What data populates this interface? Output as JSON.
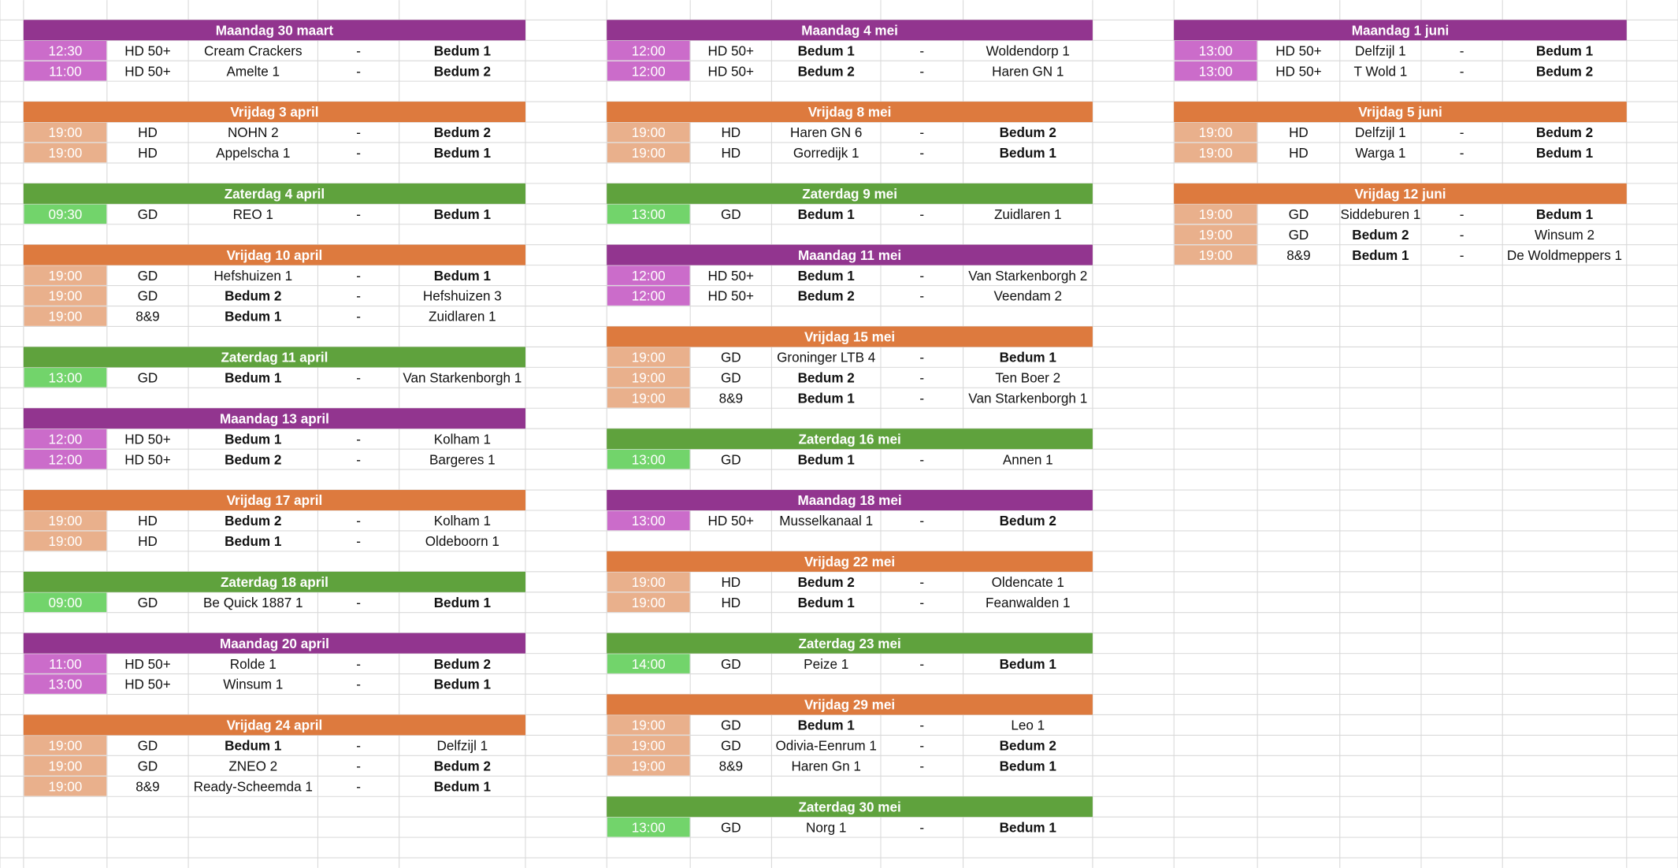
{
  "columns": [
    {
      "days": [
        {
          "title": "Maandag 30 maart",
          "header_color": "#92358f",
          "time_color": "#cb6cca",
          "matches": [
            {
              "time": "12:30",
              "category": "HD 50+",
              "home": "Cream Crackers",
              "sep": "-",
              "away": "Bedum 1",
              "bold": "away"
            },
            {
              "time": "11:00",
              "category": "HD 50+",
              "home": "Amelte 1",
              "sep": "-",
              "away": "Bedum 2",
              "bold": "away"
            }
          ]
        },
        {
          "title": "Vrijdag 3 april",
          "header_color": "#dd7a3e",
          "time_color": "#e9b08c",
          "matches": [
            {
              "time": "19:00",
              "category": "HD",
              "home": "NOHN 2",
              "sep": "-",
              "away": "Bedum 2",
              "bold": "away"
            },
            {
              "time": "19:00",
              "category": "HD",
              "home": "Appelscha 1",
              "sep": "-",
              "away": "Bedum 1",
              "bold": "away"
            }
          ]
        },
        {
          "title": "Zaterdag 4 april",
          "header_color": "#5fa23d",
          "time_color": "#72d46b",
          "matches": [
            {
              "time": "09:30",
              "category": "GD",
              "home": "REO 1",
              "sep": "-",
              "away": "Bedum 1",
              "bold": "away"
            }
          ]
        },
        {
          "title": "Vrijdag 10 april",
          "header_color": "#dd7a3e",
          "time_color": "#e9b08c",
          "matches": [
            {
              "time": "19:00",
              "category": "GD",
              "home": "Hefshuizen 1",
              "sep": "-",
              "away": "Bedum 1",
              "bold": "away"
            },
            {
              "time": "19:00",
              "category": "GD",
              "home": "Bedum 2",
              "sep": "-",
              "away": "Hefshuizen 3",
              "bold": "home"
            },
            {
              "time": "19:00",
              "category": "8&9",
              "home": "Bedum 1",
              "sep": "-",
              "away": "Zuidlaren 1",
              "bold": "home"
            }
          ]
        },
        {
          "title": "Zaterdag 11 april",
          "header_color": "#5fa23d",
          "time_color": "#72d46b",
          "matches": [
            {
              "time": "13:00",
              "category": "GD",
              "home": "Bedum 1",
              "sep": "-",
              "away": "Van Starkenborgh 1",
              "bold": "home"
            }
          ]
        },
        {
          "title": "Maandag 13 april",
          "header_color": "#92358f",
          "time_color": "#cb6cca",
          "matches": [
            {
              "time": "12:00",
              "category": "HD 50+",
              "home": "Bedum 1",
              "sep": "-",
              "away": "Kolham 1",
              "bold": "home"
            },
            {
              "time": "12:00",
              "category": "HD 50+",
              "home": "Bedum 2",
              "sep": "-",
              "away": "Bargeres 1",
              "bold": "home"
            }
          ]
        },
        {
          "title": "Vrijdag 17 april",
          "header_color": "#dd7a3e",
          "time_color": "#e9b08c",
          "matches": [
            {
              "time": "19:00",
              "category": "HD",
              "home": "Bedum 2",
              "sep": "-",
              "away": "Kolham 1",
              "bold": "home"
            },
            {
              "time": "19:00",
              "category": "HD",
              "home": "Bedum 1",
              "sep": "-",
              "away": "Oldeboorn 1",
              "bold": "home"
            }
          ]
        },
        {
          "title": "Zaterdag 18 april",
          "header_color": "#5fa23d",
          "time_color": "#72d46b",
          "matches": [
            {
              "time": "09:00",
              "category": "GD",
              "home": "Be Quick 1887 1",
              "sep": "-",
              "away": "Bedum 1",
              "bold": "away"
            }
          ]
        },
        {
          "title": "Maandag 20 april",
          "header_color": "#92358f",
          "time_color": "#cb6cca",
          "matches": [
            {
              "time": "11:00",
              "category": "HD 50+",
              "home": "Rolde 1",
              "sep": "-",
              "away": "Bedum 2",
              "bold": "away"
            },
            {
              "time": "13:00",
              "category": "HD 50+",
              "home": "Winsum 1",
              "sep": "-",
              "away": "Bedum 1",
              "bold": "away"
            }
          ]
        },
        {
          "title": "Vrijdag 24 april",
          "header_color": "#dd7a3e",
          "time_color": "#e9b08c",
          "matches": [
            {
              "time": "19:00",
              "category": "GD",
              "home": "Bedum 1",
              "sep": "-",
              "away": "Delfzijl 1",
              "bold": "home"
            },
            {
              "time": "19:00",
              "category": "GD",
              "home": "ZNEO 2",
              "sep": "-",
              "away": "Bedum 2",
              "bold": "away"
            },
            {
              "time": "19:00",
              "category": "8&9",
              "home": "Ready-Scheemda 1",
              "sep": "-",
              "away": "Bedum 1",
              "bold": "away"
            }
          ]
        }
      ]
    },
    {
      "days": [
        {
          "title": "Maandag 4 mei",
          "header_color": "#92358f",
          "time_color": "#cb6cca",
          "matches": [
            {
              "time": "12:00",
              "category": "HD 50+",
              "home": "Bedum 1",
              "sep": "-",
              "away": "Woldendorp 1",
              "bold": "home"
            },
            {
              "time": "12:00",
              "category": "HD 50+",
              "home": "Bedum 2",
              "sep": "-",
              "away": "Haren GN 1",
              "bold": "home"
            }
          ]
        },
        {
          "title": "Vrijdag 8 mei",
          "header_color": "#dd7a3e",
          "time_color": "#e9b08c",
          "matches": [
            {
              "time": "19:00",
              "category": "HD",
              "home": "Haren GN 6",
              "sep": "-",
              "away": "Bedum 2",
              "bold": "away"
            },
            {
              "time": "19:00",
              "category": "HD",
              "home": "Gorredijk 1",
              "sep": "-",
              "away": "Bedum 1",
              "bold": "away"
            }
          ]
        },
        {
          "title": "Zaterdag 9 mei",
          "header_color": "#5fa23d",
          "time_color": "#72d46b",
          "matches": [
            {
              "time": "13:00",
              "category": "GD",
              "home": "Bedum 1",
              "sep": "-",
              "away": "Zuidlaren 1",
              "bold": "home"
            }
          ]
        },
        {
          "title": "Maandag 11 mei",
          "header_color": "#92358f",
          "time_color": "#cb6cca",
          "matches": [
            {
              "time": "12:00",
              "category": "HD 50+",
              "home": "Bedum 1",
              "sep": "-",
              "away": "Van Starkenborgh 2",
              "bold": "home"
            },
            {
              "time": "12:00",
              "category": "HD 50+",
              "home": "Bedum 2",
              "sep": "-",
              "away": "Veendam 2",
              "bold": "home"
            }
          ]
        },
        {
          "title": "Vrijdag 15 mei",
          "header_color": "#dd7a3e",
          "time_color": "#e9b08c",
          "matches": [
            {
              "time": "19:00",
              "category": "GD",
              "home": "Groninger LTB 4",
              "sep": "-",
              "away": "Bedum 1",
              "bold": "away"
            },
            {
              "time": "19:00",
              "category": "GD",
              "home": "Bedum 2",
              "sep": "-",
              "away": "Ten Boer 2",
              "bold": "home"
            },
            {
              "time": "19:00",
              "category": "8&9",
              "home": "Bedum 1",
              "sep": "-",
              "away": "Van Starkenborgh 1",
              "bold": "home"
            }
          ]
        },
        {
          "title": "Zaterdag 16 mei",
          "header_color": "#5fa23d",
          "time_color": "#72d46b",
          "matches": [
            {
              "time": "13:00",
              "category": "GD",
              "home": "Bedum 1",
              "sep": "-",
              "away": "Annen 1",
              "bold": "home"
            }
          ]
        },
        {
          "title": "Maandag 18 mei",
          "header_color": "#92358f",
          "time_color": "#cb6cca",
          "matches": [
            {
              "time": "13:00",
              "category": "HD 50+",
              "home": "Musselkanaal 1",
              "sep": "-",
              "away": "Bedum 2",
              "bold": "away"
            }
          ]
        },
        {
          "title": "Vrijdag 22 mei",
          "header_color": "#dd7a3e",
          "time_color": "#e9b08c",
          "matches": [
            {
              "time": "19:00",
              "category": "HD",
              "home": "Bedum 2",
              "sep": "-",
              "away": "Oldencate 1",
              "bold": "home"
            },
            {
              "time": "19:00",
              "category": "HD",
              "home": "Bedum 1",
              "sep": "-",
              "away": "Feanwalden 1",
              "bold": "home"
            }
          ]
        },
        {
          "title": "Zaterdag 23 mei",
          "header_color": "#5fa23d",
          "time_color": "#72d46b",
          "matches": [
            {
              "time": "14:00",
              "category": "GD",
              "home": "Peize 1",
              "sep": "-",
              "away": "Bedum 1",
              "bold": "away"
            }
          ]
        },
        {
          "title": "Vrijdag 29 mei",
          "header_color": "#dd7a3e",
          "time_color": "#e9b08c",
          "matches": [
            {
              "time": "19:00",
              "category": "GD",
              "home": "Bedum 1",
              "sep": "-",
              "away": "Leo 1",
              "bold": "home"
            },
            {
              "time": "19:00",
              "category": "GD",
              "home": "Odivia-Eenrum 1",
              "sep": "-",
              "away": "Bedum 2",
              "bold": "away"
            },
            {
              "time": "19:00",
              "category": "8&9",
              "home": "Haren Gn 1",
              "sep": "-",
              "away": "Bedum 1",
              "bold": "away"
            }
          ]
        },
        {
          "title": "Zaterdag 30 mei",
          "header_color": "#5fa23d",
          "time_color": "#72d46b",
          "matches": [
            {
              "time": "13:00",
              "category": "GD",
              "home": "Norg 1",
              "sep": "-",
              "away": "Bedum 1",
              "bold": "away"
            }
          ]
        }
      ]
    },
    {
      "days": [
        {
          "title": "Maandag 1 juni",
          "header_color": "#92358f",
          "time_color": "#cb6cca",
          "matches": [
            {
              "time": "13:00",
              "category": "HD 50+",
              "home": "Delfzijl 1",
              "sep": "-",
              "away": "Bedum 1",
              "bold": "away"
            },
            {
              "time": "13:00",
              "category": "HD 50+",
              "home": "T Wold 1",
              "sep": "-",
              "away": "Bedum 2",
              "bold": "away"
            }
          ]
        },
        {
          "title": "Vrijdag 5 juni",
          "header_color": "#dd7a3e",
          "time_color": "#e9b08c",
          "matches": [
            {
              "time": "19:00",
              "category": "HD",
              "home": "Delfzijl 1",
              "sep": "-",
              "away": "Bedum 2",
              "bold": "away"
            },
            {
              "time": "19:00",
              "category": "HD",
              "home": "Warga 1",
              "sep": "-",
              "away": "Bedum 1",
              "bold": "away"
            }
          ]
        },
        {
          "title": "Vrijdag 12 juni",
          "header_color": "#dd7a3e",
          "time_color": "#e9b08c",
          "matches": [
            {
              "time": "19:00",
              "category": "GD",
              "home": "Siddeburen 1",
              "sep": "-",
              "away": "Bedum 1",
              "bold": "away"
            },
            {
              "time": "19:00",
              "category": "GD",
              "home": "Bedum 2",
              "sep": "-",
              "away": "Winsum 2",
              "bold": "home"
            },
            {
              "time": "19:00",
              "category": "8&9",
              "home": "Bedum 1",
              "sep": "-",
              "away": "De Woldmeppers 1",
              "bold": "home"
            }
          ]
        }
      ]
    }
  ]
}
